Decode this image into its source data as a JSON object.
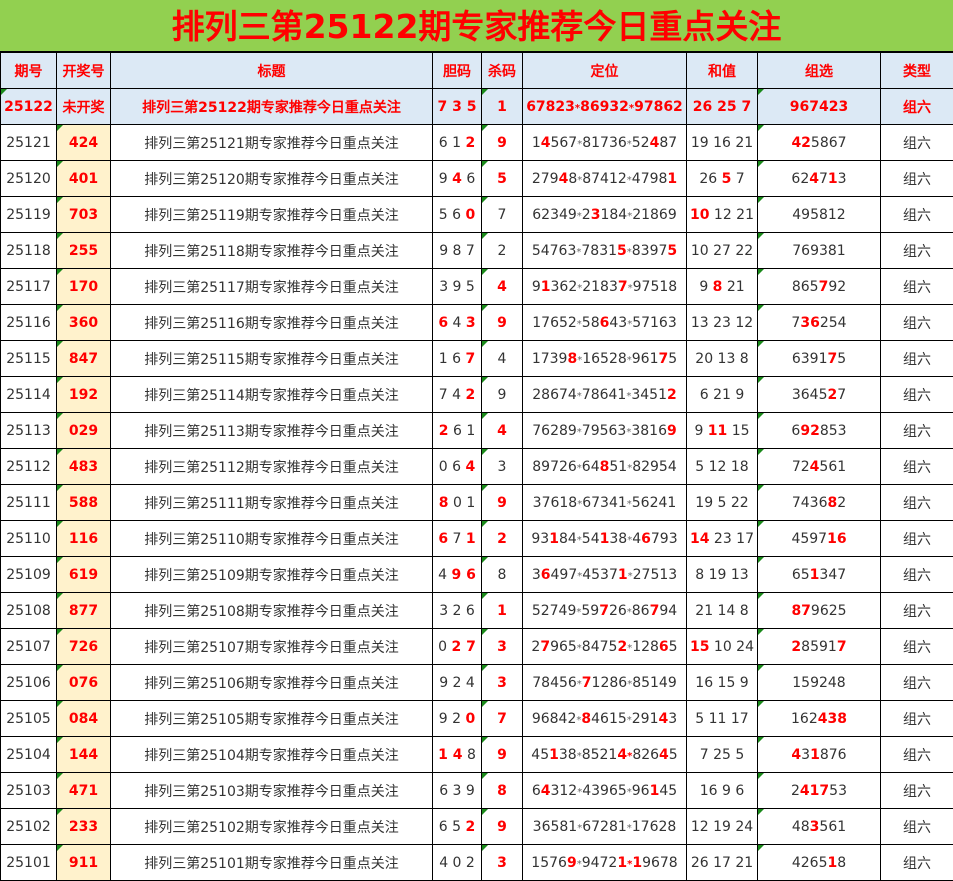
{
  "title": "排列三第25122期专家推荐今日重点关注",
  "headers": [
    "期号",
    "开奖号",
    "标题",
    "胆码",
    "杀码",
    "定位",
    "和值",
    "组选",
    "类型"
  ],
  "colors": {
    "title_bg": "#92d050",
    "header_bg": "#dce9f5",
    "highlight": "#ff0000",
    "win_bg": "#fff2cc"
  },
  "current": {
    "issue": "25122",
    "win": "未开奖",
    "title": "排列三第25122期专家推荐今日重点关注",
    "dan": "7 3 5",
    "kill": "1",
    "pos": "67823*86932*97862",
    "sum": "26 25 7",
    "group": "967423",
    "type": "组六"
  },
  "rows": [
    {
      "issue": "25121",
      "win": "424",
      "title": "排列三第25121期专家推荐今日重点关注",
      "dan": "6 1 [2]",
      "kill": "9",
      "kill_hit": true,
      "pos": "1[4]567*81736*52[4]87",
      "sum": "19 16 21",
      "group": "[42]5867",
      "type": "组六"
    },
    {
      "issue": "25120",
      "win": "401",
      "title": "排列三第25120期专家推荐今日重点关注",
      "dan": "9 [4] 6",
      "kill": "5",
      "kill_hit": true,
      "pos": "279[4]8*87412*4798[1]",
      "sum": "26 [5] 7",
      "group": "62[4]7[1]3",
      "type": "组六"
    },
    {
      "issue": "25119",
      "win": "703",
      "title": "排列三第25119期专家推荐今日重点关注",
      "dan": "5 6 [0]",
      "kill": "7",
      "kill_hit": false,
      "pos": "62349*2[3]184*21869",
      "sum": "[10] 12 21",
      "group": "495812",
      "type": "组六"
    },
    {
      "issue": "25118",
      "win": "255",
      "title": "排列三第25118期专家推荐今日重点关注",
      "dan": "9 8 7",
      "kill": "2",
      "kill_hit": false,
      "pos": "54763*7831[5]*8397[5]",
      "sum": "10 27 22",
      "group": "769381",
      "type": "组六"
    },
    {
      "issue": "25117",
      "win": "170",
      "title": "排列三第25117期专家推荐今日重点关注",
      "dan": "3 9 5",
      "kill": "4",
      "kill_hit": true,
      "pos": "9[1]362*2183[7]*97518",
      "sum": "9 [8] 21",
      "group": "865[7]92",
      "type": "组六"
    },
    {
      "issue": "25116",
      "win": "360",
      "title": "排列三第25116期专家推荐今日重点关注",
      "dan": "[6] 4 [3]",
      "kill": "9",
      "kill_hit": true,
      "pos": "17652*58[6]43*57163",
      "sum": "13 23 12",
      "group": "7[36]254",
      "type": "组六"
    },
    {
      "issue": "25115",
      "win": "847",
      "title": "排列三第25115期专家推荐今日重点关注",
      "dan": "1 6 [7]",
      "kill": "4",
      "kill_hit": false,
      "pos": "1739[8]*16528*961[7]5",
      "sum": "20 13 8",
      "group": "6391[7]5",
      "type": "组六"
    },
    {
      "issue": "25114",
      "win": "192",
      "title": "排列三第25114期专家推荐今日重点关注",
      "dan": "7 4 [2]",
      "kill": "9",
      "kill_hit": false,
      "pos": "28674*78641*3451[2]",
      "sum": "6 21 9",
      "group": "3645[2]7",
      "type": "组六"
    },
    {
      "issue": "25113",
      "win": "029",
      "title": "排列三第25113期专家推荐今日重点关注",
      "dan": "[2] 6 1",
      "kill": "4",
      "kill_hit": true,
      "pos": "76289*79563*3816[9]",
      "sum": "9 [11] 15",
      "group": "6[92]853",
      "type": "组六"
    },
    {
      "issue": "25112",
      "win": "483",
      "title": "排列三第25112期专家推荐今日重点关注",
      "dan": "0 6 [4]",
      "kill": "3",
      "kill_hit": false,
      "pos": "89726*64[8]51*82954",
      "sum": "5 12 18",
      "group": "72[4]561",
      "type": "组六"
    },
    {
      "issue": "25111",
      "win": "588",
      "title": "排列三第25111期专家推荐今日重点关注",
      "dan": "[8] 0 1",
      "kill": "9",
      "kill_hit": true,
      "pos": "37618*67341*56241",
      "sum": "19 5 22",
      "group": "7436[8]2",
      "type": "组六"
    },
    {
      "issue": "25110",
      "win": "116",
      "title": "排列三第25110期专家推荐今日重点关注",
      "dan": "[6] 7 [1]",
      "kill": "2",
      "kill_hit": true,
      "pos": "93[1]84*54[1]38*4[6]793",
      "sum": "[14] 23 17",
      "group": "4597[16]",
      "type": "组六"
    },
    {
      "issue": "25109",
      "win": "619",
      "title": "排列三第25109期专家推荐今日重点关注",
      "dan": "4 [9 6]",
      "kill": "8",
      "kill_hit": false,
      "pos": "3[6]497*4537[1]*27513",
      "sum": "8 19 13",
      "group": "65[1]347",
      "type": "组六"
    },
    {
      "issue": "25108",
      "win": "877",
      "title": "排列三第25108期专家推荐今日重点关注",
      "dan": "3 2 6",
      "kill": "1",
      "kill_hit": true,
      "pos": "52749*59[7]26*86[7]94",
      "sum": "21 14 8",
      "group": "[87]9625",
      "type": "组六"
    },
    {
      "issue": "25107",
      "win": "726",
      "title": "排列三第25107期专家推荐今日重点关注",
      "dan": "0 [2 7]",
      "kill": "3",
      "kill_hit": true,
      "pos": "2[7]965*8475[2]*128[6]5",
      "sum": "[15] 10 24",
      "group": "[2]8591[7]",
      "type": "组六"
    },
    {
      "issue": "25106",
      "win": "076",
      "title": "排列三第25106期专家推荐今日重点关注",
      "dan": "9 2 4",
      "kill": "3",
      "kill_hit": true,
      "pos": "78456*[7]1286*85149",
      "sum": "16 15 9",
      "group": "159248",
      "type": "组六"
    },
    {
      "issue": "25105",
      "win": "084",
      "title": "排列三第25105期专家推荐今日重点关注",
      "dan": "9 2 [0]",
      "kill": "7",
      "kill_hit": true,
      "pos": "96842*[8]4615*291[4]3",
      "sum": "5 11 17",
      "group": "162[438]",
      "type": "组六"
    },
    {
      "issue": "25104",
      "win": "144",
      "title": "排列三第25104期专家推荐今日重点关注",
      "dan": "[1 4] 8",
      "kill": "9",
      "kill_hit": true,
      "pos": "45[1]38*8521[4*]826[4]5",
      "sum": "7 25 5",
      "group": "[4]3[1]876",
      "type": "组六"
    },
    {
      "issue": "25103",
      "win": "471",
      "title": "排列三第25103期专家推荐今日重点关注",
      "dan": "6 3 9",
      "kill": "8",
      "kill_hit": true,
      "pos": "6[4]312*43965*96[1]45",
      "sum": "16 9 6",
      "group": "2[417]53",
      "type": "组六"
    },
    {
      "issue": "25102",
      "win": "233",
      "title": "排列三第25102期专家推荐今日重点关注",
      "dan": "6 5 [2]",
      "kill": "9",
      "kill_hit": true,
      "pos": "36581*67281*17628",
      "sum": "12 19 24",
      "group": "48[3]561",
      "type": "组六"
    },
    {
      "issue": "25101",
      "win": "911",
      "title": "排列三第25101期专家推荐今日重点关注",
      "dan": "4 0 2",
      "kill": "3",
      "kill_hit": true,
      "pos": "1576[9]*9472[1*1]9678",
      "sum": "26 17 21",
      "group": "4265[1]8",
      "type": "组六"
    }
  ]
}
